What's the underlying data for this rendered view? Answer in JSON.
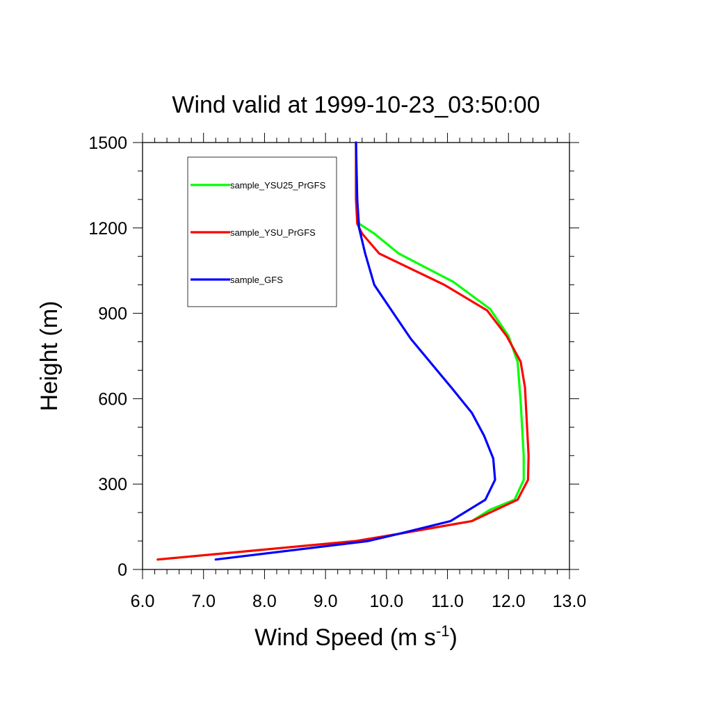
{
  "chart_data": {
    "type": "line",
    "title": "Wind valid at 1999-10-23_03:50:00",
    "xlabel": "Wind Speed (m s",
    "xlabel_sup": "-1",
    "xlabel_end": ")",
    "ylabel": "Height (m)",
    "xlim": [
      6.0,
      13.0
    ],
    "ylim": [
      0,
      1500
    ],
    "xticks": [
      6.0,
      7.0,
      8.0,
      9.0,
      10.0,
      11.0,
      12.0,
      13.0
    ],
    "xtick_labels": [
      "6.0",
      "7.0",
      "8.0",
      "9.0",
      "10.0",
      "11.0",
      "12.0",
      "13.0"
    ],
    "yticks": [
      0,
      300,
      600,
      900,
      1200,
      1500
    ],
    "ytick_labels": [
      "0",
      "300",
      "600",
      "900",
      "1200",
      "1500"
    ],
    "grid": false,
    "legend_position": "top-left",
    "series": [
      {
        "name": "sample_YSU25_PrGFS",
        "color": "#00ff00",
        "points": [
          [
            6.25,
            35
          ],
          [
            9.5,
            100
          ],
          [
            10.2,
            125
          ],
          [
            11.4,
            170
          ],
          [
            11.7,
            210
          ],
          [
            12.1,
            245
          ],
          [
            12.25,
            315
          ],
          [
            12.25,
            400
          ],
          [
            12.2,
            590
          ],
          [
            12.15,
            730
          ],
          [
            12.0,
            820
          ],
          [
            11.7,
            915
          ],
          [
            11.1,
            1010
          ],
          [
            10.2,
            1110
          ],
          [
            9.8,
            1180
          ],
          [
            9.55,
            1215
          ],
          [
            9.5,
            1300
          ],
          [
            9.5,
            1500
          ]
        ]
      },
      {
        "name": "sample_YSU_PrGFS",
        "color": "#ff0000",
        "points": [
          [
            6.25,
            35
          ],
          [
            9.5,
            100
          ],
          [
            10.2,
            125
          ],
          [
            11.4,
            170
          ],
          [
            11.7,
            200
          ],
          [
            12.15,
            245
          ],
          [
            12.32,
            315
          ],
          [
            12.33,
            400
          ],
          [
            12.27,
            640
          ],
          [
            12.2,
            730
          ],
          [
            11.97,
            820
          ],
          [
            11.65,
            910
          ],
          [
            10.95,
            1000
          ],
          [
            9.88,
            1110
          ],
          [
            9.6,
            1180
          ],
          [
            9.52,
            1215
          ],
          [
            9.5,
            1300
          ],
          [
            9.5,
            1500
          ]
        ]
      },
      {
        "name": "sample_GFS",
        "color": "#0000ff",
        "points": [
          [
            7.2,
            35
          ],
          [
            9.7,
            100
          ],
          [
            10.2,
            125
          ],
          [
            11.05,
            170
          ],
          [
            11.62,
            245
          ],
          [
            11.78,
            315
          ],
          [
            11.75,
            390
          ],
          [
            11.6,
            470
          ],
          [
            11.4,
            550
          ],
          [
            11.08,
            635
          ],
          [
            10.4,
            810
          ],
          [
            10.1,
            905
          ],
          [
            9.8,
            1000
          ],
          [
            9.65,
            1110
          ],
          [
            9.55,
            1200
          ],
          [
            9.52,
            1300
          ],
          [
            9.5,
            1500
          ]
        ]
      }
    ]
  }
}
